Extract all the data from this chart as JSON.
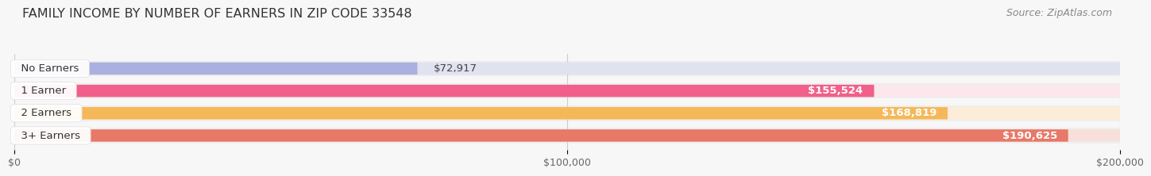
{
  "title": "FAMILY INCOME BY NUMBER OF EARNERS IN ZIP CODE 33548",
  "source": "Source: ZipAtlas.com",
  "categories": [
    "No Earners",
    "1 Earner",
    "2 Earners",
    "3+ Earners"
  ],
  "values": [
    72917,
    155524,
    168819,
    190625
  ],
  "labels": [
    "$72,917",
    "$155,524",
    "$168,819",
    "$190,625"
  ],
  "label_inside": [
    false,
    true,
    true,
    true
  ],
  "bar_colors": [
    "#aab0df",
    "#f0608a",
    "#f5b858",
    "#e87868"
  ],
  "bar_bg_colors": [
    "#e0e2f0",
    "#fce8ec",
    "#fdecd8",
    "#f8e0da"
  ],
  "xlim": [
    0,
    200000
  ],
  "xticks": [
    0,
    100000,
    200000
  ],
  "xticklabels": [
    "$0",
    "$100,000",
    "$200,000"
  ],
  "title_fontsize": 11.5,
  "source_fontsize": 9,
  "label_fontsize": 9.5,
  "category_fontsize": 9.5,
  "background_color": "#f7f7f7",
  "bar_row_bg": "#eeeeee"
}
